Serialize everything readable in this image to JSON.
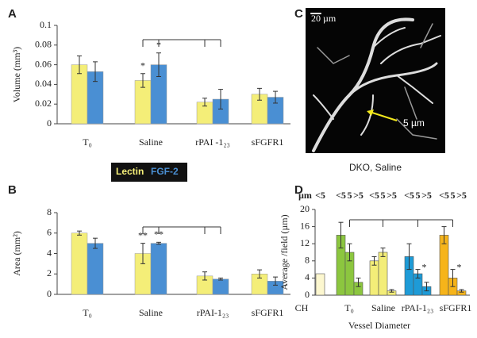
{
  "chart_data": [
    {
      "type": "bar",
      "panel": "A",
      "ylabel": "Volume (mm³)",
      "categories": [
        "T₀",
        "Saline",
        "rPAI -1₂₃",
        "sFGFR1"
      ],
      "series": [
        {
          "name": "Lectin",
          "color": "#f4ee78",
          "values": [
            0.06,
            0.044,
            0.022,
            0.03
          ],
          "errors": [
            0.009,
            0.007,
            0.004,
            0.006
          ]
        },
        {
          "name": "FGF-2",
          "color": "#4a8fd3",
          "values": [
            0.053,
            0.06,
            0.025,
            0.027
          ],
          "errors": [
            0.01,
            0.012,
            0.01,
            0.006
          ]
        }
      ],
      "ylim": [
        0,
        0.1
      ],
      "yticks": [
        0,
        0.02,
        0.04,
        0.06,
        0.08,
        0.1
      ],
      "annotations": [
        {
          "text": "*",
          "series": 0,
          "index": 1
        },
        {
          "text": "*",
          "series": 1,
          "index": 1
        }
      ]
    },
    {
      "type": "bar",
      "panel": "B",
      "ylabel": "Area (mm²)",
      "categories": [
        "T₀",
        "Saline",
        "rPAI-1₂₃",
        "sFGFR1"
      ],
      "series": [
        {
          "color": "#f4ee78",
          "values": [
            6,
            4,
            1.8,
            2
          ],
          "errors": [
            0.2,
            1,
            0.4,
            0.4
          ]
        },
        {
          "color": "#4a8fd3",
          "values": [
            5,
            5,
            1.5,
            1.3
          ],
          "errors": [
            0.5,
            0.1,
            0.1,
            0.4
          ]
        }
      ],
      "ylim": [
        0,
        8
      ],
      "yticks": [
        0,
        2,
        4,
        6,
        8
      ],
      "annotations": [
        {
          "text": "**",
          "series": 0,
          "index": 1
        },
        {
          "text": "**",
          "series": 1,
          "index": 1
        }
      ]
    },
    {
      "type": "image",
      "panel": "C",
      "caption": "DKO, Saline",
      "scale_label": "20 µm",
      "annotation": "5 µm"
    },
    {
      "type": "groupbar",
      "panel": "D",
      "ylabel": "Average /field (µm)",
      "xlabel": "Vessel Diameter",
      "header_unit": "µm",
      "groups": [
        {
          "name": "CH",
          "color": "#fcf7cf",
          "diameters": [
            "<5"
          ],
          "values": [
            5
          ],
          "errors": [
            0
          ]
        },
        {
          "name": "T₀",
          "color": "#8cc63f",
          "diameters": [
            "<5",
            "5",
            ">5"
          ],
          "values": [
            14,
            10,
            3
          ],
          "errors": [
            3,
            2,
            1
          ]
        },
        {
          "name": "Saline",
          "color": "#f3ed78",
          "diameters": [
            "<5",
            "5",
            ">5"
          ],
          "values": [
            8,
            10,
            1
          ],
          "errors": [
            1,
            1,
            0.3
          ]
        },
        {
          "name": "rPAI-1₂₃",
          "color": "#1e9bd7",
          "diameters": [
            "<5",
            "5",
            ">5"
          ],
          "values": [
            9,
            5,
            2
          ],
          "errors": [
            3,
            1,
            1
          ]
        },
        {
          "name": "sFGFR1",
          "color": "#f6b41a",
          "diameters": [
            "<5",
            "5",
            ">5"
          ],
          "values": [
            14,
            4,
            1
          ],
          "errors": [
            2,
            2,
            0.3
          ]
        }
      ],
      "ylim": [
        0,
        20
      ],
      "yticks": [
        0,
        4,
        8,
        12,
        16,
        20
      ],
      "annotations": [
        {
          "text": "*",
          "group": 3,
          "index": 1
        },
        {
          "text": "*",
          "group": 4,
          "index": 1
        }
      ]
    }
  ]
}
